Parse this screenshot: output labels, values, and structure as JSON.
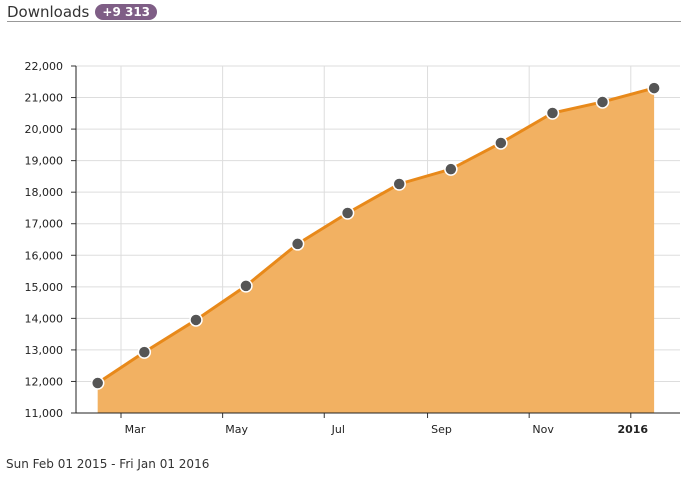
{
  "header": {
    "title": "Downloads",
    "badge": "+9 313"
  },
  "footer": {
    "date_range": "Sun Feb 01 2015 - Fri Jan 01 2016"
  },
  "colors": {
    "fill": "#f2b162",
    "line": "#e8891a",
    "point": "#555555",
    "badge": "#7f5e86"
  },
  "chart_data": {
    "type": "area",
    "title": "Downloads",
    "x": [
      "2015-02-15",
      "2015-03-15",
      "2015-04-15",
      "2015-05-15",
      "2015-06-15",
      "2015-07-15",
      "2015-08-15",
      "2015-09-15",
      "2015-10-15",
      "2015-11-15",
      "2015-12-15",
      "2016-01-15"
    ],
    "values": [
      11950,
      12930,
      13950,
      15030,
      16360,
      17340,
      18260,
      18730,
      19560,
      20510,
      20860,
      21300
    ],
    "ylim": [
      11000,
      22000
    ],
    "yticks": [
      "11,000",
      "12,000",
      "13,000",
      "14,000",
      "15,000",
      "16,000",
      "17,000",
      "18,000",
      "19,000",
      "20,000",
      "21,000",
      "22,000"
    ],
    "xticks": [
      {
        "label": "Mar",
        "date": "2015-03-01"
      },
      {
        "label": "May",
        "date": "2015-05-01"
      },
      {
        "label": "Jul",
        "date": "2015-07-01"
      },
      {
        "label": "Sep",
        "date": "2015-09-01"
      },
      {
        "label": "Nov",
        "date": "2015-11-01"
      },
      {
        "label": "2016",
        "date": "2016-01-01",
        "bold": true
      }
    ],
    "grid": true,
    "legend": "none"
  }
}
